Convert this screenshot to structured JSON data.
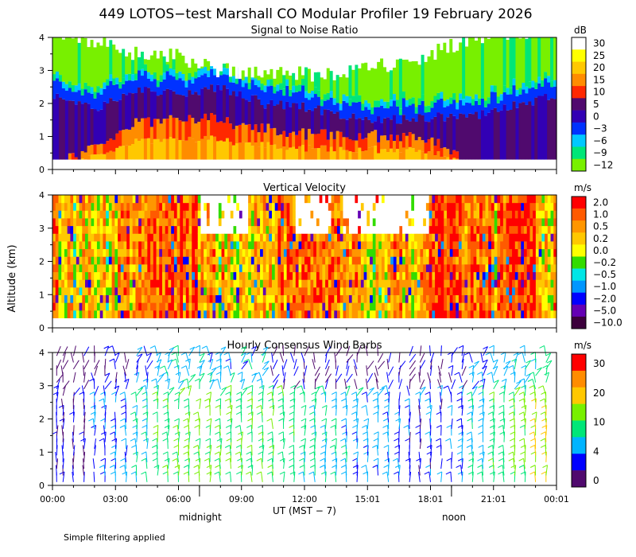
{
  "title": "449 LOTOS−test Marshall CO Modular Profiler 19 February 2026",
  "ylabel": "Altitude (km)",
  "xlabel": "UT  (MST − 7)",
  "footnote": "Simple filtering applied",
  "local_labels": [
    {
      "text": "midnight",
      "at_hour": 7
    },
    {
      "text": "noon",
      "at_hour": 19
    }
  ],
  "x_ticks": [
    "00:00",
    "03:00",
    "06:00",
    "09:00",
    "12:00",
    "15:01",
    "18:01",
    "21:01",
    "00:01"
  ],
  "x_tick_hours": [
    0,
    3,
    6,
    9,
    12,
    15,
    18,
    21,
    24
  ],
  "chart_data": [
    {
      "type": "heatmap",
      "title": "Signal to Noise Ratio",
      "xlabel": "UT  (MST − 7)",
      "ylabel": "Altitude (km)",
      "xlim": [
        0,
        24
      ],
      "ylim": [
        0,
        4
      ],
      "y_ticks": [
        "0",
        "1",
        "2",
        "3",
        "4"
      ],
      "colorbar": {
        "unit": "dB",
        "labels": [
          "30",
          "25",
          "20",
          "15",
          "10",
          "5",
          "0",
          "−3",
          "−6",
          "−9",
          "−12"
        ],
        "colors": [
          "#ffffff",
          "#ffff00",
          "#ffc800",
          "#ff8c00",
          "#ff2800",
          "#500a6e",
          "#3200b4",
          "#0032ff",
          "#00c8ff",
          "#00e678",
          "#78f000"
        ]
      },
      "profile_hours": [
        0,
        2,
        4,
        6,
        8,
        10,
        12,
        14,
        16,
        18,
        20,
        22,
        24
      ],
      "white_base_km": [
        4.2,
        3.9,
        3.5,
        3.4,
        3.0,
        2.9,
        2.9,
        2.9,
        3.2,
        3.5,
        4.0,
        4.2,
        4.2
      ],
      "purple_top_km": [
        2.2,
        1.9,
        2.4,
        2.3,
        2.5,
        2.0,
        1.9,
        1.6,
        1.5,
        1.6,
        1.6,
        2.0,
        2.2
      ],
      "red_top_km": [
        0,
        0.8,
        1.4,
        1.6,
        1.5,
        1.2,
        1.1,
        1.0,
        1.0,
        0.9,
        0,
        0,
        0
      ]
    },
    {
      "type": "heatmap",
      "title": "Vertical Velocity",
      "xlabel": "UT  (MST − 7)",
      "ylabel": "Altitude (km)",
      "xlim": [
        0,
        24
      ],
      "ylim": [
        0,
        4
      ],
      "y_ticks": [
        "0",
        "1",
        "2",
        "3",
        "4"
      ],
      "colorbar": {
        "unit": "m/s",
        "labels": [
          "2.0",
          "1.0",
          "0.5",
          "0.2",
          "0.0",
          "−0.2",
          "−0.5",
          "−1.0",
          "−2.0",
          "−5.0",
          "−10.0"
        ],
        "colors": [
          "#ff0000",
          "#ff5a00",
          "#ff9600",
          "#ffc800",
          "#ffff00",
          "#32dc00",
          "#00e6e6",
          "#0096ff",
          "#0000ff",
          "#6400b4",
          "#3c003c"
        ]
      },
      "gap_hours": [
        [
          7,
          9.3
        ],
        [
          11.5,
          13.2
        ],
        [
          13.7,
          17.8
        ]
      ],
      "gap_km": [
        2.8,
        4.0
      ]
    },
    {
      "type": "scatter",
      "title": "Hourly Consensus Wind Barbs",
      "xlabel": "UT  (MST − 7)",
      "ylabel": "Altitude (km)",
      "xlim": [
        0,
        24
      ],
      "ylim": [
        0,
        4
      ],
      "y_ticks": [
        "0",
        "1",
        "2",
        "3",
        "4"
      ],
      "colorbar": {
        "unit": "m/s",
        "labels": [
          "30",
          "20",
          "10",
          "4",
          "0"
        ],
        "colors": [
          "#ff0000",
          "#ff8c00",
          "#ffc800",
          "#78f000",
          "#00e678",
          "#00b4ff",
          "#0000ff",
          "#500a6e"
        ]
      },
      "barb_hours": [
        0.2,
        0.5,
        1.0,
        1.5,
        2.0,
        2.5,
        3.0,
        3.5,
        4.0,
        4.5,
        5.0,
        5.5,
        6.0,
        6.5,
        7.0,
        7.5,
        8.0,
        8.5,
        9.0,
        9.5,
        10.0,
        10.5,
        11.0,
        11.5,
        12.0,
        12.5,
        13.0,
        13.5,
        14.0,
        14.5,
        15.0,
        15.5,
        16.0,
        16.5,
        17.0,
        17.5,
        18.0,
        18.5,
        19.0,
        19.5,
        20.0,
        20.5,
        21.0,
        21.5,
        22.0,
        22.5,
        23.0,
        23.5
      ],
      "barb_levels_km": [
        0.1,
        0.3,
        0.5,
        0.7,
        0.9,
        1.1,
        1.3,
        1.5,
        1.7,
        1.9,
        2.1,
        2.3,
        2.5,
        2.7,
        2.9,
        3.1,
        3.3,
        3.5,
        3.7,
        3.9
      ],
      "speed_by_hour_ms": [
        2,
        2,
        3,
        4,
        6,
        8,
        9,
        9,
        9,
        9,
        9,
        8,
        7,
        6,
        5,
        5,
        4,
        3,
        3,
        4,
        6,
        8,
        10,
        12
      ]
    }
  ]
}
